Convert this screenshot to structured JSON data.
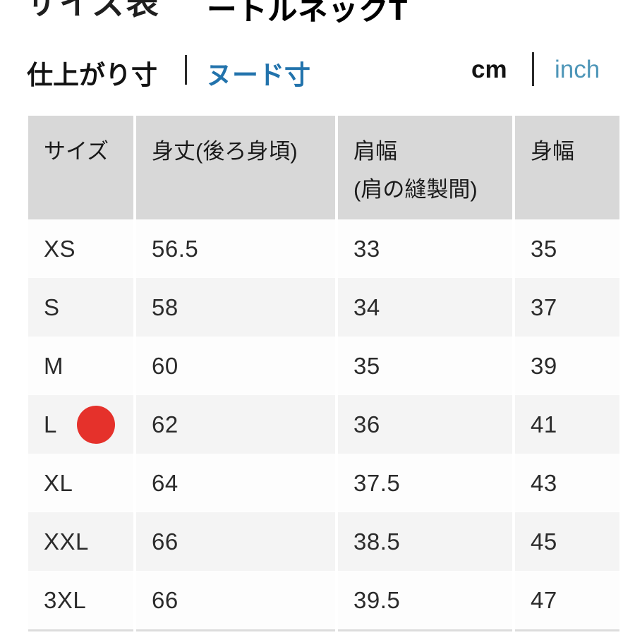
{
  "modal": {
    "title": "サイズ表",
    "product_name": "ートルネックT",
    "close_icon": "×"
  },
  "toolbar": {
    "measure_tabs": [
      {
        "label": "仕上がり寸",
        "active": true
      },
      {
        "label": "ヌード寸",
        "active": false
      }
    ],
    "unit_tabs": [
      {
        "label": "cm",
        "active": true
      },
      {
        "label": "inch",
        "active": false
      }
    ]
  },
  "colors": {
    "active_text": "#131313",
    "link_blue": "#2273ac",
    "inch_blue": "#4e96b8",
    "header_gray": "#d8d8d8",
    "stripe_gray": "#f4f4f4",
    "selected_dot_red": "#e5312b"
  },
  "table": {
    "columns": [
      {
        "label": "サイズ",
        "sublabel": ""
      },
      {
        "label": "身丈(後ろ身頃)",
        "sublabel": ""
      },
      {
        "label": "肩幅",
        "sublabel": "(肩の縫製間)"
      },
      {
        "label": "身幅",
        "sublabel": ""
      }
    ],
    "rows": [
      {
        "size": "XS",
        "length": "56.5",
        "shoulder": "33",
        "width": "35",
        "selected": false
      },
      {
        "size": "S",
        "length": "58",
        "shoulder": "34",
        "width": "37",
        "selected": false
      },
      {
        "size": "M",
        "length": "60",
        "shoulder": "35",
        "width": "39",
        "selected": false
      },
      {
        "size": "L",
        "length": "62",
        "shoulder": "36",
        "width": "41",
        "selected": true
      },
      {
        "size": "XL",
        "length": "64",
        "shoulder": "37.5",
        "width": "43",
        "selected": false
      },
      {
        "size": "XXL",
        "length": "66",
        "shoulder": "38.5",
        "width": "45",
        "selected": false
      },
      {
        "size": "3XL",
        "length": "66",
        "shoulder": "39.5",
        "width": "47",
        "selected": false
      }
    ]
  }
}
